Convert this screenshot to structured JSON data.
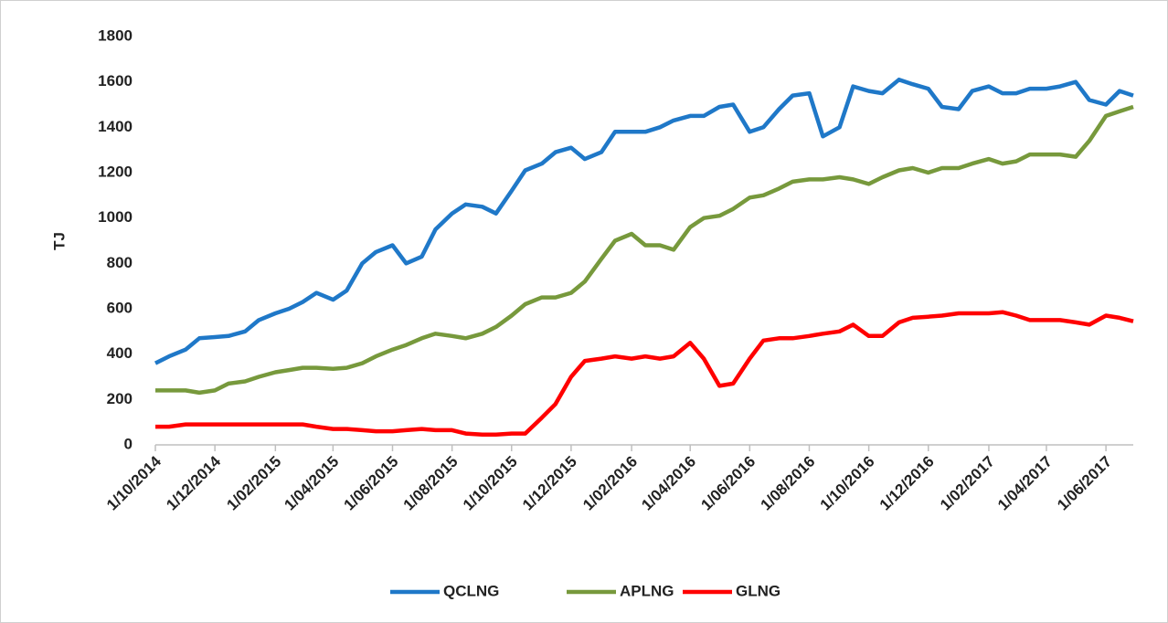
{
  "chart_data": {
    "type": "line",
    "y_label": "TJ",
    "x": [
      "2014-10-01",
      "2014-10-15",
      "2014-11-01",
      "2014-11-15",
      "2014-12-01",
      "2014-12-15",
      "2015-01-01",
      "2015-01-15",
      "2015-02-01",
      "2015-02-15",
      "2015-03-01",
      "2015-03-15",
      "2015-04-01",
      "2015-04-15",
      "2015-05-01",
      "2015-05-15",
      "2015-06-01",
      "2015-06-15",
      "2015-07-01",
      "2015-07-15",
      "2015-08-01",
      "2015-08-15",
      "2015-09-01",
      "2015-09-15",
      "2015-10-01",
      "2015-10-15",
      "2015-11-01",
      "2015-11-15",
      "2015-12-01",
      "2015-12-15",
      "2016-01-01",
      "2016-01-15",
      "2016-02-01",
      "2016-02-15",
      "2016-03-01",
      "2016-03-15",
      "2016-04-01",
      "2016-04-15",
      "2016-05-01",
      "2016-05-15",
      "2016-06-01",
      "2016-06-15",
      "2016-07-01",
      "2016-07-15",
      "2016-08-01",
      "2016-08-15",
      "2016-09-01",
      "2016-09-15",
      "2016-10-01",
      "2016-10-15",
      "2016-11-01",
      "2016-11-15",
      "2016-12-01",
      "2016-12-15",
      "2017-01-01",
      "2017-01-15",
      "2017-02-01",
      "2017-02-15",
      "2017-03-01",
      "2017-03-15",
      "2017-04-01",
      "2017-04-15",
      "2017-05-01",
      "2017-05-15",
      "2017-06-01",
      "2017-06-15",
      "2017-06-29"
    ],
    "series": [
      {
        "name": "QCLNG",
        "color": "#1f78c8",
        "values": [
          360,
          390,
          420,
          470,
          475,
          480,
          500,
          550,
          580,
          600,
          630,
          670,
          640,
          680,
          800,
          850,
          880,
          800,
          830,
          950,
          1020,
          1060,
          1050,
          1020,
          1120,
          1210,
          1240,
          1290,
          1310,
          1260,
          1290,
          1380,
          1380,
          1380,
          1400,
          1430,
          1450,
          1450,
          1490,
          1500,
          1380,
          1400,
          1480,
          1540,
          1550,
          1360,
          1400,
          1580,
          1560,
          1550,
          1610,
          1590,
          1570,
          1490,
          1480,
          1560,
          1580,
          1550,
          1550,
          1570,
          1570,
          1580,
          1600,
          1520,
          1500,
          1560,
          1540
        ]
      },
      {
        "name": "APLNG",
        "color": "#77993c",
        "values": [
          240,
          240,
          240,
          230,
          240,
          270,
          280,
          300,
          320,
          330,
          340,
          340,
          335,
          340,
          360,
          390,
          420,
          440,
          470,
          490,
          480,
          470,
          490,
          520,
          570,
          620,
          650,
          650,
          670,
          720,
          820,
          900,
          930,
          880,
          880,
          860,
          960,
          1000,
          1010,
          1040,
          1090,
          1100,
          1130,
          1160,
          1170,
          1170,
          1180,
          1170,
          1150,
          1180,
          1210,
          1220,
          1200,
          1220,
          1220,
          1240,
          1260,
          1240,
          1250,
          1280,
          1280,
          1280,
          1270,
          1340,
          1450,
          1470,
          1490
        ]
      },
      {
        "name": "GLNG",
        "color": "#ff0000",
        "values": [
          80,
          80,
          90,
          90,
          90,
          90,
          90,
          90,
          90,
          90,
          90,
          80,
          70,
          70,
          65,
          60,
          60,
          65,
          70,
          65,
          65,
          50,
          45,
          45,
          50,
          50,
          120,
          180,
          300,
          370,
          380,
          390,
          380,
          390,
          380,
          390,
          450,
          380,
          260,
          270,
          380,
          460,
          470,
          470,
          480,
          490,
          500,
          530,
          480,
          480,
          540,
          560,
          565,
          570,
          580,
          580,
          580,
          585,
          570,
          550,
          550,
          550,
          540,
          530,
          570,
          560,
          545
        ]
      }
    ],
    "xlim": [
      "2014-10-01",
      "2017-06-29"
    ],
    "xticks": [
      {
        "value": "2014-10-01",
        "label": "1/10/2014"
      },
      {
        "value": "2014-12-01",
        "label": "1/12/2014"
      },
      {
        "value": "2015-02-01",
        "label": "1/02/2015"
      },
      {
        "value": "2015-04-01",
        "label": "1/04/2015"
      },
      {
        "value": "2015-06-01",
        "label": "1/06/2015"
      },
      {
        "value": "2015-08-01",
        "label": "1/08/2015"
      },
      {
        "value": "2015-10-01",
        "label": "1/10/2015"
      },
      {
        "value": "2015-12-01",
        "label": "1/12/2015"
      },
      {
        "value": "2016-02-01",
        "label": "1/02/2016"
      },
      {
        "value": "2016-04-01",
        "label": "1/04/2016"
      },
      {
        "value": "2016-06-01",
        "label": "1/06/2016"
      },
      {
        "value": "2016-08-01",
        "label": "1/08/2016"
      },
      {
        "value": "2016-10-01",
        "label": "1/10/2016"
      },
      {
        "value": "2016-12-01",
        "label": "1/12/2016"
      },
      {
        "value": "2017-02-01",
        "label": "1/02/2017"
      },
      {
        "value": "2017-04-01",
        "label": "1/04/2017"
      },
      {
        "value": "2017-06-01",
        "label": "1/06/2017"
      }
    ],
    "ylim": [
      0,
      1800
    ],
    "yticks": [
      0,
      200,
      400,
      600,
      800,
      1000,
      1200,
      1400,
      1600,
      1800
    ],
    "grid": false,
    "legend": "bottom"
  }
}
